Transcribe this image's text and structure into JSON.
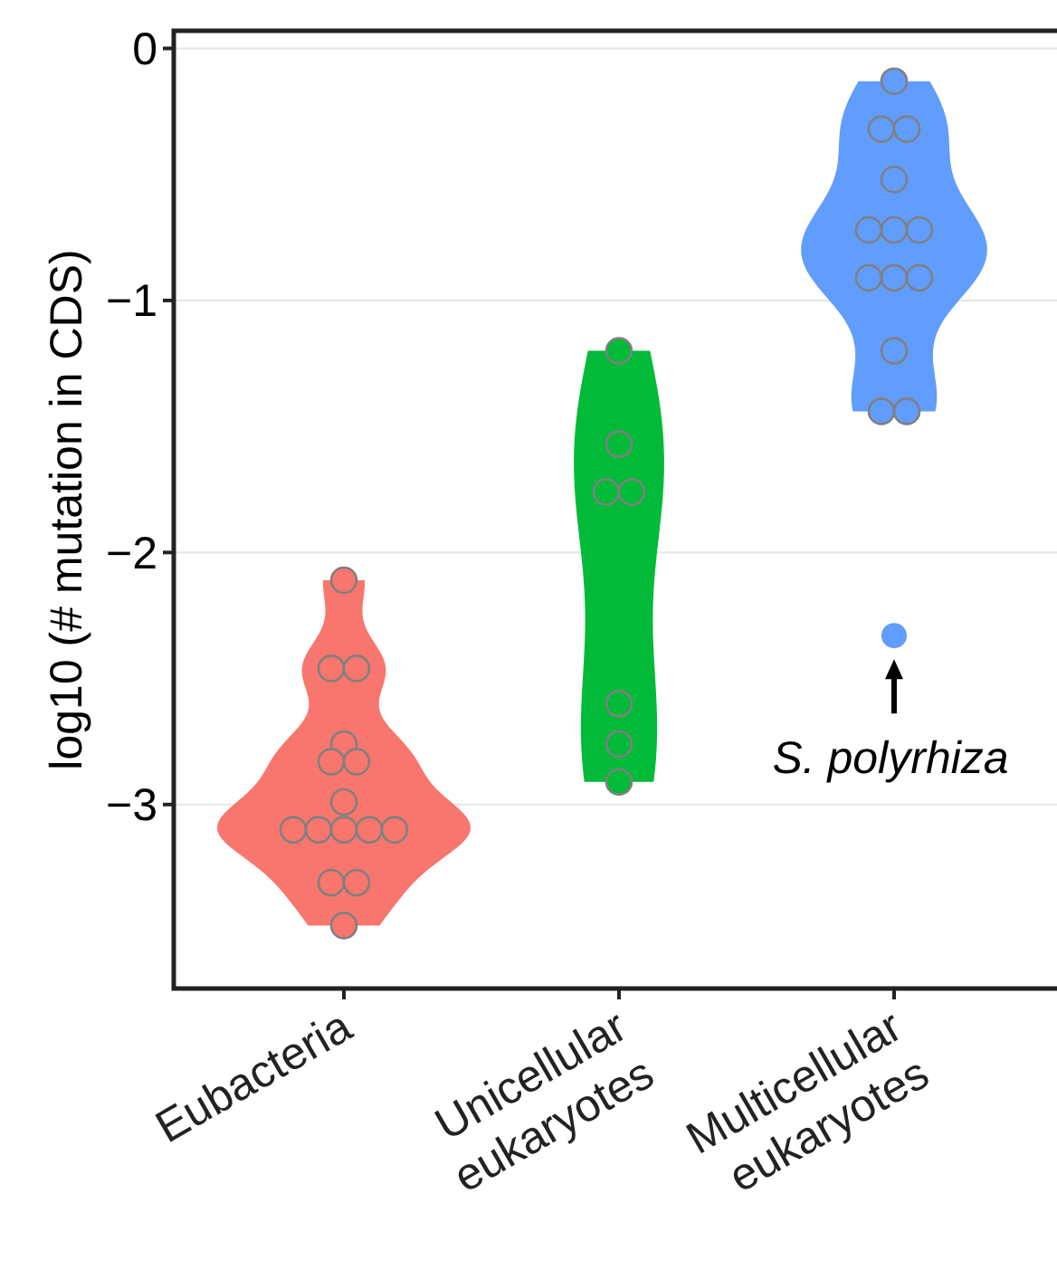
{
  "chart_data": {
    "type": "scatter",
    "ylabel": "log10 (# mutation in CDS)",
    "categories": [
      "Eubacteria",
      "Unicellular eukaryotes",
      "Multicellular eukaryotes"
    ],
    "ylim": [
      -3.73,
      0.07
    ],
    "yticks": [
      0,
      -1,
      -2,
      -3
    ],
    "grid": "y",
    "series": [
      {
        "color": "#f8766d",
        "x": [
          "Eubacteria",
          "Eubacteria",
          "Eubacteria",
          "Eubacteria",
          "Eubacteria",
          "Eubacteria",
          "Eubacteria",
          "Eubacteria",
          "Eubacteria",
          "Eubacteria",
          "Eubacteria",
          "Eubacteria",
          "Eubacteria",
          "Eubacteria",
          "Eubacteria"
        ],
        "values": [
          -2.11,
          -2.46,
          -2.46,
          -2.76,
          -2.83,
          -2.83,
          -2.99,
          -3.1,
          -3.1,
          -3.1,
          -3.1,
          -3.1,
          -3.31,
          -3.31,
          -3.48
        ]
      },
      {
        "color": "#00ba38",
        "x": [
          "Unicellular eukaryotes",
          "Unicellular eukaryotes",
          "Unicellular eukaryotes",
          "Unicellular eukaryotes",
          "Unicellular eukaryotes",
          "Unicellular eukaryotes",
          "Unicellular eukaryotes"
        ],
        "values": [
          -1.2,
          -1.57,
          -1.76,
          -1.76,
          -2.6,
          -2.76,
          -2.91
        ]
      },
      {
        "color": "#619cff",
        "x": [
          "Multicellular eukaryotes",
          "Multicellular eukaryotes",
          "Multicellular eukaryotes",
          "Multicellular eukaryotes",
          "Multicellular eukaryotes",
          "Multicellular eukaryotes",
          "Multicellular eukaryotes",
          "Multicellular eukaryotes",
          "Multicellular eukaryotes",
          "Multicellular eukaryotes",
          "Multicellular eukaryotes",
          "Multicellular eukaryotes",
          "Multicellular eukaryotes"
        ],
        "values": [
          -0.13,
          -0.32,
          -0.32,
          -0.52,
          -0.72,
          -0.72,
          -0.72,
          -0.91,
          -0.91,
          -0.91,
          -1.2,
          -1.44,
          -1.44
        ]
      },
      {
        "color": "#619cff",
        "x": [
          "Multicellular eukaryotes"
        ],
        "values": [
          -2.33
        ]
      }
    ],
    "annotations": [
      {
        "text": "S. polyrhiza",
        "x": "Multicellular eukaryotes",
        "y": -2.33
      }
    ]
  }
}
